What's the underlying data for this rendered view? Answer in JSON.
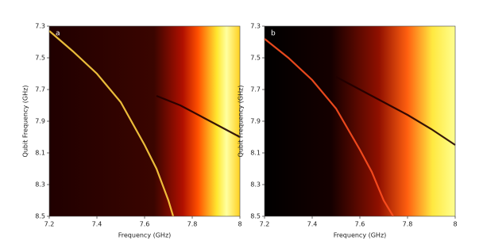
{
  "chart_data": [
    {
      "type": "heatmap",
      "title": "a",
      "xlabel": "Frequency (GHz)",
      "ylabel": "Qubit Frequency (GHz)",
      "xlim": [
        7.2,
        8
      ],
      "ylim": [
        8.5,
        7.3
      ],
      "xticks": [
        7.2,
        7.4,
        7.6,
        7.8,
        8
      ],
      "yticks": [
        7.3,
        7.5,
        7.7,
        7.9,
        8.1,
        8.3,
        8.5
      ],
      "series": [
        {
          "color": "#ffd040",
          "x": [
            7.2,
            7.3,
            7.4,
            7.5,
            7.6,
            7.65,
            7.7,
            7.72
          ],
          "values": [
            7.33,
            7.46,
            7.6,
            7.78,
            8.05,
            8.2,
            8.4,
            8.5
          ]
        },
        {
          "color": "#200000",
          "x": [
            7.65,
            7.75,
            7.85,
            7.95,
            8
          ],
          "values": [
            7.74,
            7.8,
            7.88,
            7.96,
            8.0
          ]
        }
      ]
    },
    {
      "type": "heatmap",
      "title": "b",
      "xlabel": "Frequency (GHz)",
      "ylabel": "Qubit Frequency (GHz)",
      "xlim": [
        7.2,
        8
      ],
      "ylim": [
        8.5,
        7.3
      ],
      "xticks": [
        7.2,
        7.4,
        7.6,
        7.8,
        8
      ],
      "yticks": [
        7.3,
        7.5,
        7.7,
        7.9,
        8.1,
        8.3,
        8.5
      ],
      "series": [
        {
          "color": "#ff5020",
          "x": [
            7.2,
            7.3,
            7.4,
            7.5,
            7.6,
            7.65,
            7.7,
            7.74
          ],
          "values": [
            7.38,
            7.5,
            7.64,
            7.82,
            8.08,
            8.22,
            8.4,
            8.5
          ]
        },
        {
          "color": "#200000",
          "x": [
            7.5,
            7.6,
            7.7,
            7.8,
            7.9,
            8
          ],
          "values": [
            7.62,
            7.7,
            7.78,
            7.86,
            7.95,
            8.05
          ]
        }
      ]
    }
  ]
}
